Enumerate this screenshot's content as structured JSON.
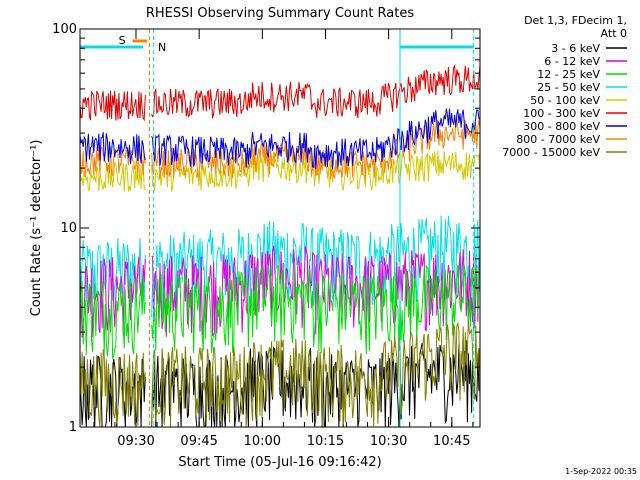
{
  "chart_data": {
    "type": "line",
    "title": "RHESSI Observing Summary Count Rates",
    "xlabel": "Start Time (05-Jul-16 09:16:42)",
    "ylabel": "Count Rate (s⁻¹ detector⁻¹)",
    "yscale": "log",
    "ylim": [
      1,
      100
    ],
    "y_tick_labels": [
      "1",
      "10",
      "100"
    ],
    "x_unit": "minutes after 09:16:42",
    "xlim": [
      0,
      95
    ],
    "x_tick_labels": [
      "09:30",
      "09:45",
      "10:00",
      "10:15",
      "10:30",
      "10:45"
    ],
    "x_tick_values": [
      13.3,
      28.3,
      43.3,
      58.3,
      73.3,
      88.3
    ],
    "legend_header": [
      "Det 1,3, FDecim 1,",
      "Att 0"
    ],
    "legend_position": "right, outside plot",
    "flags": [
      {
        "label": "S",
        "color": "#ff8000"
      },
      {
        "label": "N",
        "color": "#00e0e0"
      }
    ],
    "series": [
      {
        "name": "3 - 6 keV",
        "color": "#000000",
        "level_start": 1.6,
        "level_mid": 1.6,
        "level_end": 1.9
      },
      {
        "name": "6 - 12 keV",
        "color": "#e000e0",
        "level_start": 5.0,
        "level_mid": 5.2,
        "level_end": 5.6
      },
      {
        "name": "12 - 25 keV",
        "color": "#00e000",
        "level_start": 4.0,
        "level_mid": 4.2,
        "level_end": 4.6
      },
      {
        "name": "25 - 50 keV",
        "color": "#00e0e0",
        "level_start": 6.0,
        "level_mid": 7.0,
        "level_end": 8.0
      },
      {
        "name": "50 - 100 keV",
        "color": "#d4c800",
        "level_start": 18,
        "level_mid": 19,
        "level_end": 21
      },
      {
        "name": "100 - 300 keV",
        "color": "#e00000",
        "level_start": 42,
        "level_mid": 43,
        "level_end": 56
      },
      {
        "name": "300 - 800 keV",
        "color": "#0000e0",
        "level_start": 26,
        "level_mid": 24,
        "level_end": 34
      },
      {
        "name": "800 - 7000 keV",
        "color": "#ff8000",
        "level_start": 22,
        "level_mid": 21,
        "level_end": 30
      },
      {
        "name": "7000 - 15000 keV",
        "color": "#808000",
        "level_start": 1.7,
        "level_mid": 1.8,
        "level_end": 2.4
      }
    ],
    "grid": false
  },
  "timestamp": "1-Sep-2022 00:35"
}
